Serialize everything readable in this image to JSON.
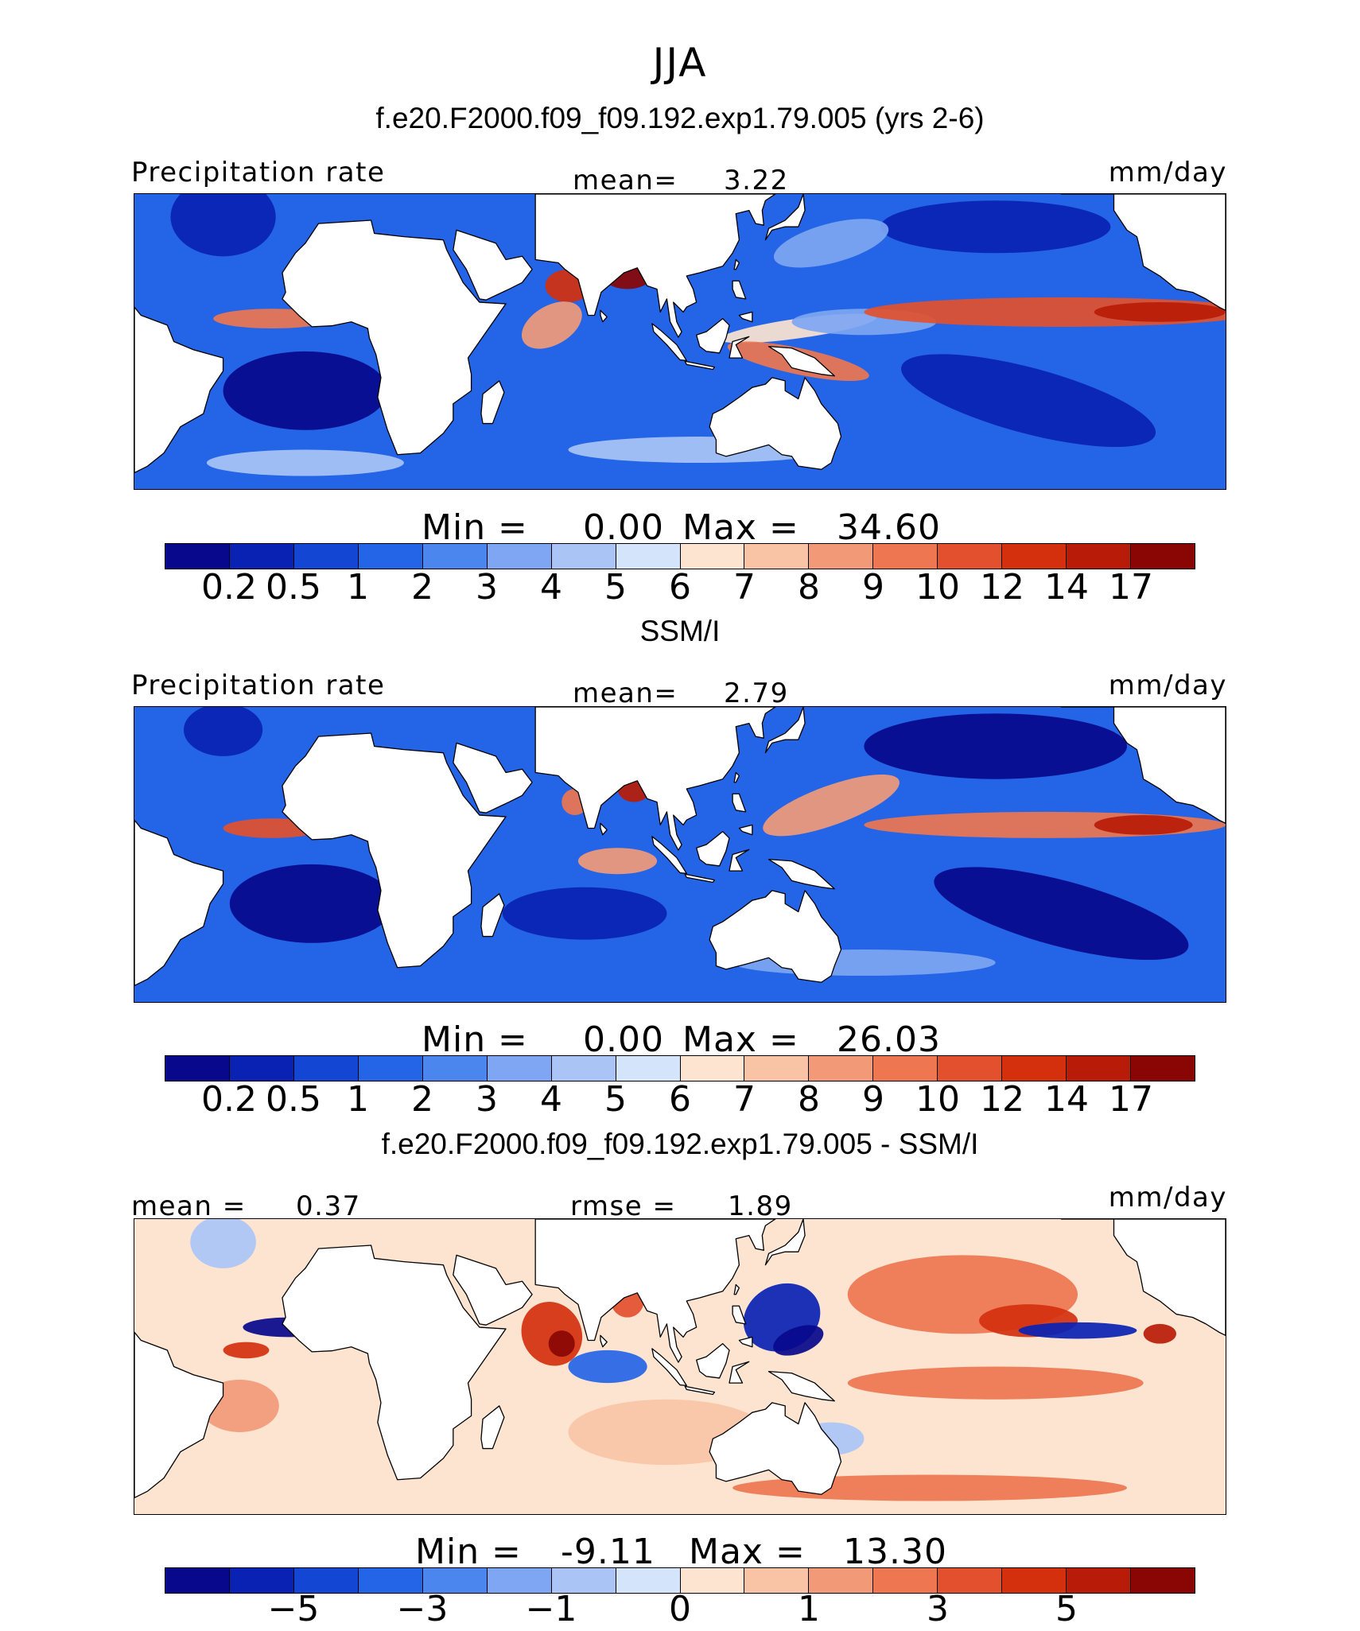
{
  "title": "JJA",
  "palette_seq": [
    "#08088c",
    "#0a22b4",
    "#1446d4",
    "#2464e6",
    "#4a86ee",
    "#7ea6f2",
    "#aac4f6",
    "#d4e4fa",
    "#fde4d0",
    "#f9c4a6",
    "#f29a78",
    "#ee7650",
    "#e2502e",
    "#d4300e",
    "#b81c08",
    "#8a0604"
  ],
  "palette_div": [
    "#08088c",
    "#0a22b4",
    "#1446d4",
    "#2464e6",
    "#4a86ee",
    "#7ea6f2",
    "#aac4f6",
    "#d4e4fa",
    "#fde4d0",
    "#f9c4a6",
    "#f29a78",
    "#ee7650",
    "#e2502e",
    "#d4300e",
    "#b81c08",
    "#8a0604"
  ],
  "land_color": "#ffffff",
  "chart_data": [
    {
      "type": "heatmap",
      "title": "f.e20.F2000.f09_f09.192.exp1.79.005 (yrs 2-6)",
      "variable": "Precipitation rate",
      "mean_label": "mean=",
      "mean_value": "3.22",
      "units": "mm/day",
      "min_label": "Min =",
      "min_value": "0.00",
      "max_label": "Max =",
      "max_value": "34.60",
      "levels": [
        "0.2",
        "0.5",
        "1",
        "2",
        "3",
        "4",
        "5",
        "6",
        "7",
        "8",
        "9",
        "10",
        "12",
        "14",
        "17"
      ],
      "tick_labels": [
        "0.2",
        "0.5",
        "1",
        "2",
        "3",
        "4",
        "5",
        "6",
        "7",
        "8",
        "9",
        "10",
        "12",
        "14",
        "17"
      ],
      "tick_level_index": [
        0,
        1,
        2,
        3,
        4,
        5,
        6,
        7,
        8,
        9,
        10,
        11,
        12,
        13,
        14
      ],
      "background_level": 3,
      "features": [
        {
          "lon": 70,
          "lat": 17,
          "rx": 7,
          "ry": 5,
          "level": 13,
          "rot": 0
        },
        {
          "lon": 88,
          "lat": 21,
          "rx": 8,
          "ry": 5,
          "level": 15,
          "rot": 0
        },
        {
          "lon": 65,
          "lat": 5,
          "rx": 10,
          "ry": 6,
          "level": 10,
          "rot": -30
        },
        {
          "lon": 140,
          "lat": 4,
          "rx": 24,
          "ry": 3,
          "level": 8,
          "rot": -8
        },
        {
          "lon": 160,
          "lat": 6,
          "rx": 22,
          "ry": 4,
          "level": 5,
          "rot": 0
        },
        {
          "lon": 220,
          "lat": 9,
          "rx": 60,
          "ry": 4.5,
          "level": 12,
          "rot": 0
        },
        {
          "lon": 250,
          "lat": 9,
          "rx": 20,
          "ry": 3,
          "level": 14,
          "rot": 0
        },
        {
          "lon": 140,
          "lat": -6,
          "rx": 22,
          "ry": 4,
          "level": 11,
          "rot": 12
        },
        {
          "lon": -20,
          "lat": 7,
          "rx": 18,
          "ry": 3,
          "level": 11,
          "rot": 0
        },
        {
          "lon": -10,
          "lat": -15,
          "rx": 25,
          "ry": 12,
          "level": 0,
          "rot": 0
        },
        {
          "lon": -35,
          "lat": 38,
          "rx": 16,
          "ry": 12,
          "level": 1,
          "rot": 0
        },
        {
          "lon": 210,
          "lat": -18,
          "rx": 40,
          "ry": 10,
          "level": 1,
          "rot": 15
        },
        {
          "lon": 200,
          "lat": 35,
          "rx": 35,
          "ry": 8,
          "level": 1,
          "rot": 0
        },
        {
          "lon": 110,
          "lat": -33,
          "rx": 40,
          "ry": 4,
          "level": 6,
          "rot": 0
        },
        {
          "lon": -10,
          "lat": -37,
          "rx": 30,
          "ry": 4,
          "level": 6,
          "rot": 0
        },
        {
          "lon": 150,
          "lat": 30,
          "rx": 18,
          "ry": 6,
          "level": 5,
          "rot": -15
        }
      ]
    },
    {
      "type": "heatmap",
      "title": "SSM/I",
      "variable": "Precipitation rate",
      "mean_label": "mean=",
      "mean_value": "2.79",
      "units": "mm/day",
      "min_label": "Min =",
      "min_value": "0.00",
      "max_label": "Max =",
      "max_value": "26.03",
      "levels": [
        "0.2",
        "0.5",
        "1",
        "2",
        "3",
        "4",
        "5",
        "6",
        "7",
        "8",
        "9",
        "10",
        "12",
        "14",
        "17"
      ],
      "tick_labels": [
        "0.2",
        "0.5",
        "1",
        "2",
        "3",
        "4",
        "5",
        "6",
        "7",
        "8",
        "9",
        "10",
        "12",
        "14",
        "17"
      ],
      "tick_level_index": [
        0,
        1,
        2,
        3,
        4,
        5,
        6,
        7,
        8,
        9,
        10,
        11,
        12,
        13,
        14
      ],
      "background_level": 3,
      "features": [
        {
          "lon": -20,
          "lat": 8,
          "rx": 15,
          "ry": 3,
          "level": 12,
          "rot": 0
        },
        {
          "lon": 90,
          "lat": 20,
          "rx": 5,
          "ry": 4,
          "level": 14,
          "rot": 0
        },
        {
          "lon": 72,
          "lat": 16,
          "rx": 4,
          "ry": 4,
          "level": 11,
          "rot": 0
        },
        {
          "lon": 85,
          "lat": -2,
          "rx": 12,
          "ry": 4,
          "level": 10,
          "rot": 0
        },
        {
          "lon": 150,
          "lat": 15,
          "rx": 22,
          "ry": 6,
          "level": 10,
          "rot": -20
        },
        {
          "lon": 215,
          "lat": 9,
          "rx": 55,
          "ry": 4,
          "level": 11,
          "rot": 0
        },
        {
          "lon": 245,
          "lat": 9,
          "rx": 15,
          "ry": 3,
          "level": 14,
          "rot": 0
        },
        {
          "lon": 200,
          "lat": 33,
          "rx": 40,
          "ry": 10,
          "level": 0,
          "rot": 0
        },
        {
          "lon": 220,
          "lat": -18,
          "rx": 40,
          "ry": 10,
          "level": 0,
          "rot": 15
        },
        {
          "lon": -8,
          "lat": -15,
          "rx": 25,
          "ry": 12,
          "level": 0,
          "rot": 0
        },
        {
          "lon": 75,
          "lat": -18,
          "rx": 25,
          "ry": 8,
          "level": 1,
          "rot": 0
        },
        {
          "lon": -35,
          "lat": 38,
          "rx": 12,
          "ry": 8,
          "level": 1,
          "rot": 0
        },
        {
          "lon": 160,
          "lat": -33,
          "rx": 40,
          "ry": 4,
          "level": 5,
          "rot": 0
        }
      ]
    },
    {
      "type": "heatmap",
      "title": "f.e20.F2000.f09_f09.192.exp1.79.005 - SSM/I",
      "mean_label": "mean =",
      "mean_value": "0.37",
      "rmse_label": "rmse =",
      "rmse_value": "1.89",
      "units": "mm/day",
      "min_label": "Min =",
      "min_value": "-9.11",
      "max_label": "Max =",
      "max_value": "13.30",
      "levels": [
        "-7",
        "-5",
        "-4",
        "-3",
        "-2",
        "-1",
        "-0.5",
        "0",
        "0.5",
        "1",
        "2",
        "3",
        "4",
        "5",
        "7"
      ],
      "tick_labels": [
        "−5",
        "−3",
        "−1",
        "0",
        "1",
        "3",
        "5"
      ],
      "tick_level_index": [
        1,
        3,
        5,
        7,
        9,
        11,
        13
      ],
      "background_level": 8,
      "features": [
        {
          "lon": -15,
          "lat": 12,
          "rx": 14,
          "ry": 3,
          "level": 0,
          "rot": 0
        },
        {
          "lon": -28,
          "lat": 5,
          "rx": 7,
          "ry": 2.5,
          "level": 13,
          "rot": 0
        },
        {
          "lon": 65,
          "lat": 10,
          "rx": 9,
          "ry": 10,
          "level": 13,
          "rot": -30
        },
        {
          "lon": 68,
          "lat": 7,
          "rx": 4,
          "ry": 4,
          "level": 15,
          "rot": 0
        },
        {
          "lon": 88,
          "lat": 20,
          "rx": 5,
          "ry": 5,
          "level": 12,
          "rot": 0
        },
        {
          "lon": 82,
          "lat": 0,
          "rx": 12,
          "ry": 5,
          "level": 3,
          "rot": 0
        },
        {
          "lon": 135,
          "lat": 15,
          "rx": 12,
          "ry": 10,
          "level": 1,
          "rot": -25
        },
        {
          "lon": 140,
          "lat": 8,
          "rx": 8,
          "ry": 4,
          "level": 0,
          "rot": -20
        },
        {
          "lon": 190,
          "lat": 22,
          "rx": 35,
          "ry": 12,
          "level": 11,
          "rot": 0
        },
        {
          "lon": 210,
          "lat": 14,
          "rx": 15,
          "ry": 5,
          "level": 13,
          "rot": 0
        },
        {
          "lon": 225,
          "lat": 11,
          "rx": 18,
          "ry": 2.5,
          "level": 1,
          "rot": 0
        },
        {
          "lon": 250,
          "lat": 10,
          "rx": 5,
          "ry": 3,
          "level": 14,
          "rot": 0
        },
        {
          "lon": 200,
          "lat": -5,
          "rx": 45,
          "ry": 5,
          "level": 11,
          "rot": 0
        },
        {
          "lon": -30,
          "lat": -12,
          "rx": 12,
          "ry": 8,
          "level": 10,
          "rot": 0
        },
        {
          "lon": 100,
          "lat": -20,
          "rx": 30,
          "ry": 10,
          "level": 9,
          "rot": 0
        },
        {
          "lon": 180,
          "lat": -37,
          "rx": 60,
          "ry": 4,
          "level": 11,
          "rot": 0
        },
        {
          "lon": 150,
          "lat": -22,
          "rx": 10,
          "ry": 5,
          "level": 6,
          "rot": 0
        },
        {
          "lon": -35,
          "lat": 38,
          "rx": 10,
          "ry": 8,
          "level": 6,
          "rot": 0
        }
      ]
    }
  ]
}
